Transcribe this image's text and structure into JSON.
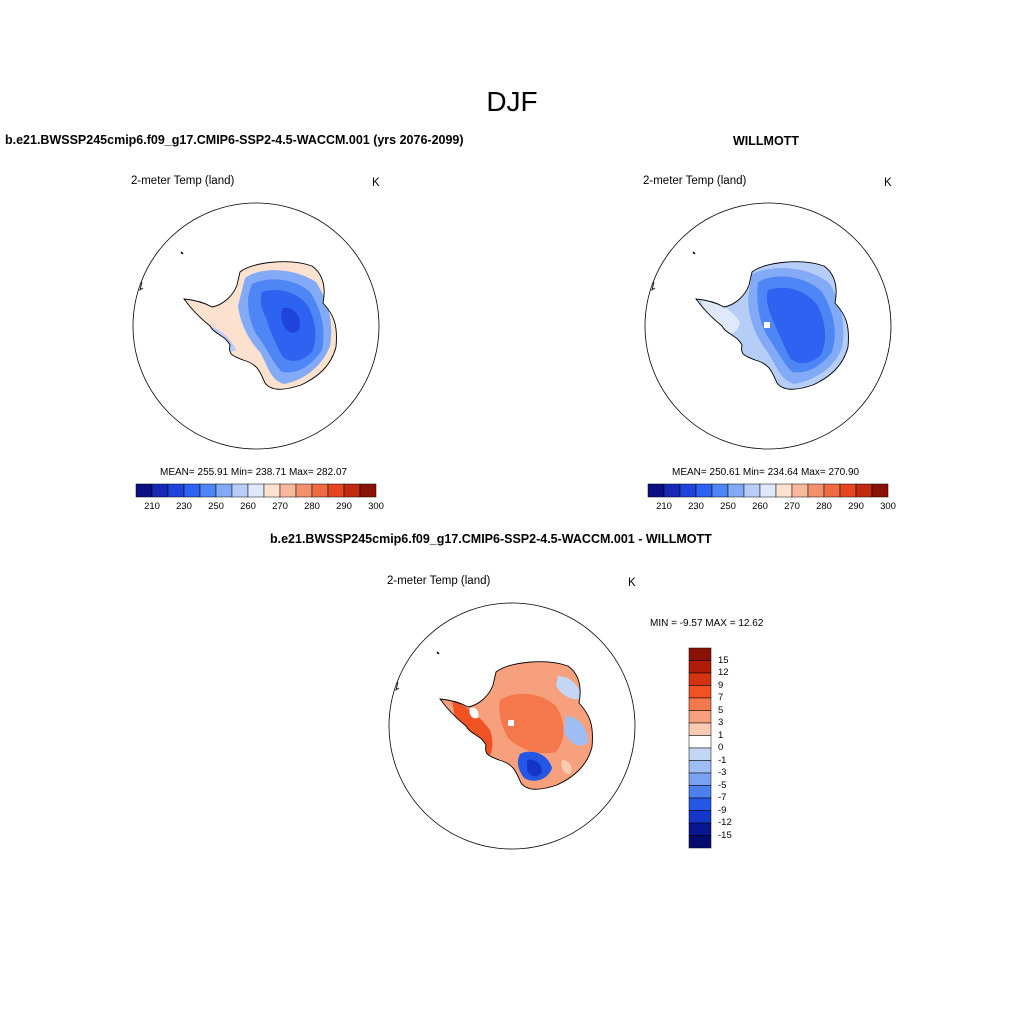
{
  "season": "DJF",
  "panels": [
    {
      "title": "b.e21.BWSSP245cmip6.f09_g17.CMIP6-SSP2-4.5-WACCM.001 (yrs 2076-2099)",
      "variable": "2-meter Temp (land)",
      "units": "K",
      "stats": "MEAN= 255.91  Min= 238.71  Max= 282.07",
      "colorbar_ticks": [
        "210",
        "230",
        "250",
        "260",
        "270",
        "280",
        "290",
        "300"
      ]
    },
    {
      "title": "WILLMOTT",
      "variable": "2-meter Temp (land)",
      "units": "K",
      "stats": "MEAN= 250.61  Min= 234.64  Max= 270.90",
      "colorbar_ticks": [
        "210",
        "230",
        "250",
        "260",
        "270",
        "280",
        "290",
        "300"
      ]
    },
    {
      "title": "b.e21.BWSSP245cmip6.f09_g17.CMIP6-SSP2-4.5-WACCM.001 - WILLMOTT",
      "variable": "2-meter Temp (land)",
      "units": "K",
      "stats": "MIN =  -9.57 MAX =  12.62",
      "colorbar_ticks": [
        "15",
        "12",
        "9",
        "7",
        "5",
        "3",
        "1",
        "0",
        "-1",
        "-3",
        "-5",
        "-7",
        "-9",
        "-12",
        "-15"
      ]
    }
  ],
  "colors": {
    "abs_palette": [
      "#0a0f82",
      "#1628b4",
      "#1f44dc",
      "#2e62f0",
      "#4f86f5",
      "#82aaf6",
      "#b6cdf7",
      "#dfe9fb",
      "#fde1cf",
      "#f8b99b",
      "#f4916c",
      "#ef6a43",
      "#e54622",
      "#c02a10",
      "#8a1205"
    ],
    "diff_palette": [
      "#8a1205",
      "#b01c08",
      "#d33310",
      "#f05224",
      "#f4784c",
      "#f7a07e",
      "#fbcbb1",
      "#ffffff",
      "#c4d6f6",
      "#9ebdf3",
      "#7aa2f1",
      "#4c7ff0",
      "#2457e6",
      "#1436c8",
      "#0a1590",
      "#060c6e"
    ]
  }
}
